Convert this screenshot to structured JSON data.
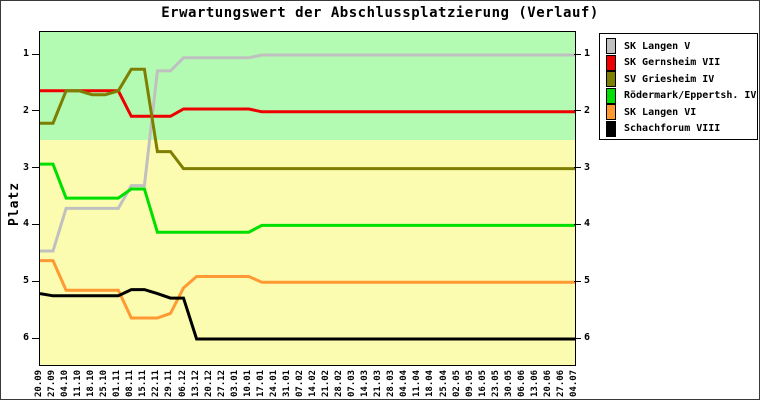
{
  "window": {
    "title": "Erwartungswert der Abschlussplatzierung (Verlauf)"
  },
  "chart_data": {
    "type": "line",
    "title": "Erwartungswert der Abschlussplatzierung (Verlauf)",
    "xlabel": "",
    "ylabel": "Platz",
    "y_axis_inverted": true,
    "ylim": [
      0.595,
      6.457
    ],
    "y_ticks": [
      1,
      2,
      3,
      4,
      5,
      6
    ],
    "grid": false,
    "legend_position": "outside-top-right",
    "zones": [
      {
        "name": "upper-green-zone",
        "from": 0.595,
        "to": 2.5,
        "color": "#b3fab3"
      },
      {
        "name": "lower-yellow-zone",
        "from": 2.5,
        "to": 6.457,
        "color": "#fcfcb0"
      }
    ],
    "x_labels": [
      "20.09",
      "27.09",
      "04.10",
      "11.10",
      "18.10",
      "25.10",
      "01.11",
      "08.11",
      "15.11",
      "22.11",
      "29.11",
      "06.12",
      "13.12",
      "20.12",
      "27.12",
      "03.01",
      "10.01",
      "17.01",
      "24.01",
      "31.01",
      "07.02",
      "14.02",
      "21.02",
      "28.02",
      "07.03",
      "14.03",
      "21.03",
      "28.03",
      "04.04",
      "11.04",
      "18.04",
      "25.04",
      "02.05",
      "09.05",
      "16.05",
      "23.05",
      "30.05",
      "06.06",
      "13.06",
      "20.06",
      "27.06",
      "04.07"
    ],
    "series": [
      {
        "name": "SK Langen V",
        "color": "#c0c0c0",
        "values": [
          4.45,
          4.45,
          3.7,
          3.7,
          3.7,
          3.7,
          3.7,
          3.3,
          3.3,
          1.28,
          1.28,
          1.05,
          1.05,
          1.05,
          1.05,
          1.05,
          1.05,
          1,
          1,
          1,
          1,
          1,
          1,
          1,
          1,
          1,
          1,
          1,
          1,
          1,
          1,
          1,
          1,
          1,
          1,
          1,
          1,
          1,
          1,
          1,
          1,
          1
        ]
      },
      {
        "name": "SK Gernsheim VII",
        "color": "#ee0000",
        "values": [
          1.63,
          1.63,
          1.63,
          1.63,
          1.63,
          1.63,
          1.63,
          2.08,
          2.08,
          2.08,
          2.08,
          1.95,
          1.95,
          1.95,
          1.95,
          1.95,
          1.95,
          2,
          2,
          2,
          2,
          2,
          2,
          2,
          2,
          2,
          2,
          2,
          2,
          2,
          2,
          2,
          2,
          2,
          2,
          2,
          2,
          2,
          2,
          2,
          2,
          2
        ]
      },
      {
        "name": "SV Griesheim IV",
        "color": "#7e7e00",
        "values": [
          2.2,
          2.2,
          1.63,
          1.63,
          1.7,
          1.7,
          1.63,
          1.25,
          1.25,
          2.7,
          2.7,
          3,
          3,
          3,
          3,
          3,
          3,
          3,
          3,
          3,
          3,
          3,
          3,
          3,
          3,
          3,
          3,
          3,
          3,
          3,
          3,
          3,
          3,
          3,
          3,
          3,
          3,
          3,
          3,
          3,
          3,
          3
        ]
      },
      {
        "name": "Rödermark/Eppertsh. IV",
        "color": "#00e000",
        "values": [
          2.92,
          2.92,
          3.52,
          3.52,
          3.52,
          3.52,
          3.52,
          3.36,
          3.36,
          4.12,
          4.12,
          4.12,
          4.12,
          4.12,
          4.12,
          4.12,
          4.12,
          4,
          4,
          4,
          4,
          4,
          4,
          4,
          4,
          4,
          4,
          4,
          4,
          4,
          4,
          4,
          4,
          4,
          4,
          4,
          4,
          4,
          4,
          4,
          4,
          4
        ]
      },
      {
        "name": "SK Langen VI",
        "color": "#ff9933",
        "values": [
          4.62,
          4.62,
          5.14,
          5.14,
          5.14,
          5.14,
          5.14,
          5.63,
          5.63,
          5.63,
          5.55,
          5.1,
          4.9,
          4.9,
          4.9,
          4.9,
          4.9,
          5,
          5,
          5,
          5,
          5,
          5,
          5,
          5,
          5,
          5,
          5,
          5,
          5,
          5,
          5,
          5,
          5,
          5,
          5,
          5,
          5,
          5,
          5,
          5,
          5
        ]
      },
      {
        "name": "Schachforum VIII",
        "color": "#000000",
        "values": [
          5.2,
          5.24,
          5.24,
          5.24,
          5.24,
          5.24,
          5.24,
          5.13,
          5.13,
          5.2,
          5.28,
          5.28,
          6,
          6,
          6,
          6,
          6,
          6,
          6,
          6,
          6,
          6,
          6,
          6,
          6,
          6,
          6,
          6,
          6,
          6,
          6,
          6,
          6,
          6,
          6,
          6,
          6,
          6,
          6,
          6,
          6,
          6
        ]
      }
    ]
  }
}
